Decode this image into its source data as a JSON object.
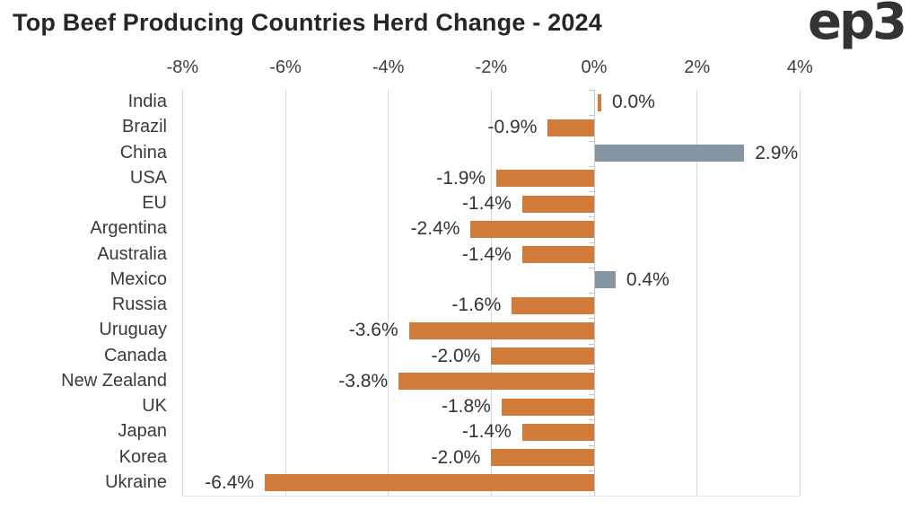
{
  "header": {
    "title": "Top Beef Producing Countries Herd Change - 2024",
    "logo": "ep3"
  },
  "colors": {
    "negative_bar": "#D17B3A",
    "positive_bar": "#8596A2",
    "gridline": "#D9D9D9",
    "zero_line": "#C4C4C4",
    "title_text": "#262626",
    "label_text": "#3A3A3A"
  },
  "chart_data": {
    "type": "bar",
    "orientation": "horizontal",
    "title": "Top Beef Producing Countries Herd Change - 2024",
    "xlabel": "",
    "ylabel": "",
    "xlim": [
      -8,
      4
    ],
    "grid": "vertical",
    "x_tick_values": [
      -8,
      -6,
      -4,
      -2,
      0,
      2,
      4
    ],
    "x_tick_labels": [
      "-8%",
      "-6%",
      "-4%",
      "-2%",
      "0%",
      "2%",
      "4%"
    ],
    "categories": [
      "India",
      "Brazil",
      "China",
      "USA",
      "EU",
      "Argentina",
      "Australia",
      "Mexico",
      "Russia",
      "Uruguay",
      "Canada",
      "New Zealand",
      "UK",
      "Japan",
      "Korea",
      "Ukraine"
    ],
    "values": [
      0.0,
      -0.9,
      2.9,
      -1.9,
      -1.4,
      -2.4,
      -1.4,
      0.4,
      -1.6,
      -3.6,
      -2.0,
      -3.8,
      -1.8,
      -1.4,
      -2.0,
      -6.4
    ],
    "value_labels": [
      "0.0%",
      "-0.9%",
      "2.9%",
      "-1.9%",
      "-1.4%",
      "-2.4%",
      "-1.4%",
      "0.4%",
      "-1.6%",
      "-3.6%",
      "-2.0%",
      "-3.8%",
      "-1.8%",
      "-1.4%",
      "-2.0%",
      "-6.4%"
    ],
    "bar_colors": [
      "#D17B3A",
      "#D17B3A",
      "#8596A2",
      "#D17B3A",
      "#D17B3A",
      "#D17B3A",
      "#D17B3A",
      "#8596A2",
      "#D17B3A",
      "#D17B3A",
      "#D17B3A",
      "#D17B3A",
      "#D17B3A",
      "#D17B3A",
      "#D17B3A",
      "#D17B3A"
    ]
  }
}
